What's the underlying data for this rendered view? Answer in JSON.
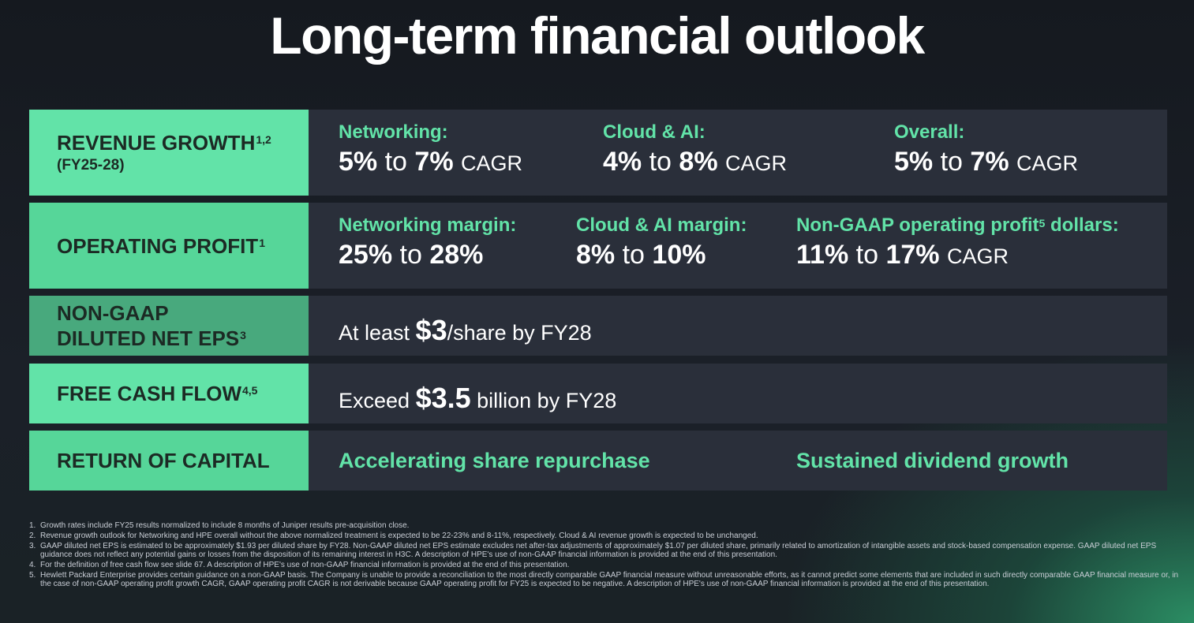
{
  "title": "Long-term financial outlook",
  "colors": {
    "label_bright": "#62e3a8",
    "label_mid": "#56d699",
    "label_dark": "#48a97d",
    "panel": "#2a2f3a",
    "accent_text": "#62e3a8"
  },
  "rows": {
    "revenue": {
      "label": "REVENUE GROWTH",
      "label_sup": "1,2",
      "sublabel": "(FY25-28)",
      "items": [
        {
          "head": "Networking:",
          "from": "5%",
          "to_word": "to",
          "to": "7%",
          "unit": "CAGR"
        },
        {
          "head": "Cloud & AI:",
          "from": "4%",
          "to_word": "to",
          "to": "8%",
          "unit": "CAGR"
        },
        {
          "head": "Overall:",
          "from": "5%",
          "to_word": "to",
          "to": "7%",
          "unit": "CAGR"
        }
      ]
    },
    "operating": {
      "label": "OPERATING PROFIT",
      "label_sup": "1",
      "items": [
        {
          "head": "Networking margin:",
          "from": "25%",
          "to_word": "to",
          "to": "28%",
          "unit": ""
        },
        {
          "head": "Cloud & AI margin:",
          "from": "8%",
          "to_word": "to",
          "to": "10%",
          "unit": ""
        },
        {
          "head": "Non-GAAP operating profit",
          "head_sup": "5",
          "head_tail": " dollars:",
          "from": "11%",
          "to_word": "to",
          "to": "17%",
          "unit": "CAGR"
        }
      ]
    },
    "eps": {
      "label_line1": "NON-GAAP",
      "label_line2": "DILUTED NET EPS",
      "label_sup": "3",
      "prefix": "At least ",
      "amount": "$3",
      "suffix": "/share by FY28"
    },
    "fcf": {
      "label": "FREE CASH FLOW",
      "label_sup": "4,5",
      "prefix": "Exceed ",
      "amount": "$3.5",
      "suffix": " billion by FY28"
    },
    "capital": {
      "label": "RETURN OF CAPITAL",
      "left": "Accelerating share repurchase",
      "right": "Sustained dividend growth"
    }
  },
  "footnotes": [
    {
      "num": "1.",
      "text": "Growth rates include FY25 results normalized to include 8 months of Juniper results pre-acquisition close."
    },
    {
      "num": "2.",
      "text": "Revenue growth outlook for Networking and HPE overall without the above normalized treatment is expected to be 22-23% and 8-11%, respectively. Cloud & AI revenue growth is expected to be unchanged."
    },
    {
      "num": "3.",
      "text": "GAAP diluted net EPS is estimated to be approximately $1.93 per diluted share by FY28. Non-GAAP diluted net EPS estimate excludes net after-tax adjustments of approximately $1.07 per diluted share, primarily related to amortization of intangible assets and stock-based compensation expense. GAAP diluted net EPS guidance does not reflect any potential gains or losses from the disposition of its remaining interest in H3C. A description of HPE's use of non-GAAP financial information is provided at the end of this presentation."
    },
    {
      "num": "4.",
      "text": "For the definition of free cash flow see slide 67. A description of HPE's use of non-GAAP financial information is provided at the end of this presentation."
    },
    {
      "num": "5.",
      "text": "Hewlett Packard Enterprise provides certain guidance on a non-GAAP basis. The Company is unable to provide a reconciliation to the most directly comparable GAAP financial measure without unreasonable efforts, as it cannot predict some elements that are included in such directly comparable GAAP financial measure or, in the case of non-GAAP operating profit growth CAGR, GAAP operating profit CAGR is not derivable because GAAP operating profit for FY25 is expected to be negative. A description of HPE's use of non-GAAP financial information is provided at the end of this presentation."
    }
  ]
}
